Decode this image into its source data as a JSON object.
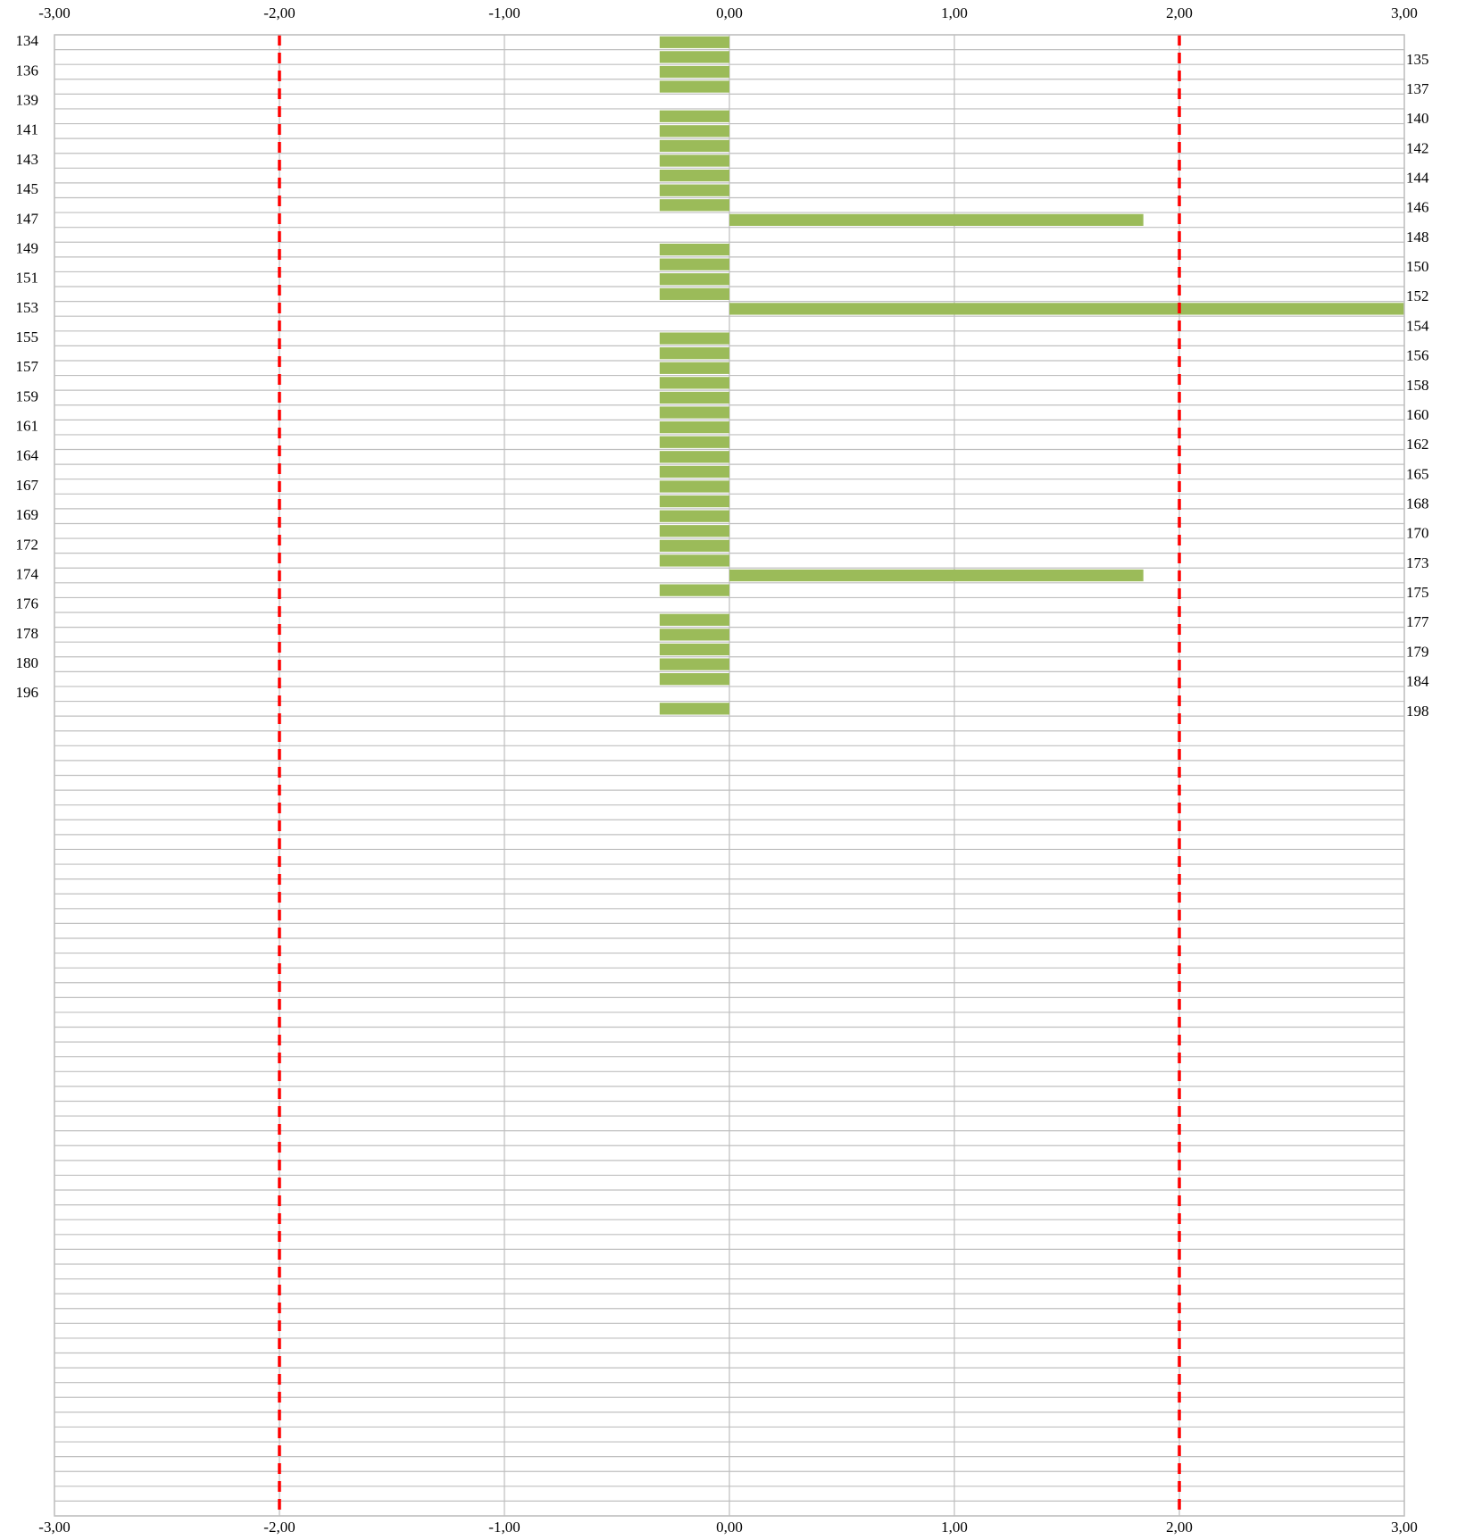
{
  "chart_data": {
    "type": "barh",
    "categories": [
      "134",
      "135",
      "136",
      "137",
      "139",
      "140",
      "141",
      "142",
      "143",
      "144",
      "145",
      "146",
      "147",
      "148",
      "149",
      "150",
      "151",
      "152",
      "153",
      "154",
      "155",
      "156",
      "157",
      "158",
      "159",
      "160",
      "161",
      "162",
      "164",
      "165",
      "167",
      "168",
      "169",
      "170",
      "172",
      "173",
      "174",
      "175",
      "176",
      "177",
      "178",
      "179",
      "180",
      "184",
      "196",
      "198",
      null,
      null,
      null,
      null,
      null,
      null,
      null,
      null,
      null,
      null,
      null,
      null,
      null,
      null,
      null,
      null,
      null,
      null,
      null,
      null,
      null,
      null,
      null,
      null,
      null,
      null,
      null,
      null,
      null,
      null,
      null,
      null,
      null,
      null,
      null,
      null,
      null,
      null,
      null,
      null,
      null,
      null,
      null,
      null,
      null,
      null,
      null,
      null,
      null,
      null,
      null,
      null,
      null,
      null
    ],
    "values": [
      -0.31,
      -0.31,
      -0.31,
      -0.31,
      null,
      -0.31,
      -0.31,
      -0.31,
      -0.31,
      -0.31,
      -0.31,
      -0.31,
      1.84,
      null,
      -0.31,
      -0.31,
      -0.31,
      -0.31,
      3,
      null,
      -0.31,
      -0.31,
      -0.31,
      -0.31,
      -0.31,
      -0.31,
      -0.31,
      -0.31,
      -0.31,
      -0.31,
      -0.31,
      -0.31,
      -0.31,
      -0.31,
      -0.31,
      -0.31,
      1.84,
      -0.31,
      null,
      -0.31,
      -0.31,
      -0.31,
      -0.31,
      -0.31,
      null,
      -0.31,
      null,
      null,
      null,
      null,
      null,
      null,
      null,
      null,
      null,
      null,
      null,
      null,
      null,
      null,
      null,
      null,
      null,
      null,
      null,
      null,
      null,
      null,
      null,
      null,
      null,
      null,
      null,
      null,
      null,
      null,
      null,
      null,
      null,
      null,
      null,
      null,
      null,
      null,
      null,
      null,
      null,
      null,
      null,
      null,
      null,
      null,
      null,
      null,
      null,
      null,
      null,
      null,
      null,
      null
    ],
    "color": "#9bbb59",
    "xlim": [
      -3,
      3
    ],
    "xticks": [
      {
        "value": -3,
        "label": "-3,00"
      },
      {
        "value": -2,
        "label": "-2,00"
      },
      {
        "value": -1,
        "label": "-1,00"
      },
      {
        "value": 0,
        "label": "0,00"
      },
      {
        "value": 1,
        "label": "1,00"
      },
      {
        "value": 2,
        "label": "2,00"
      },
      {
        "value": 3,
        "label": "3,00"
      }
    ],
    "grid": true,
    "reference_lines": [
      -2,
      2
    ],
    "reference_color": "#ff0000"
  }
}
